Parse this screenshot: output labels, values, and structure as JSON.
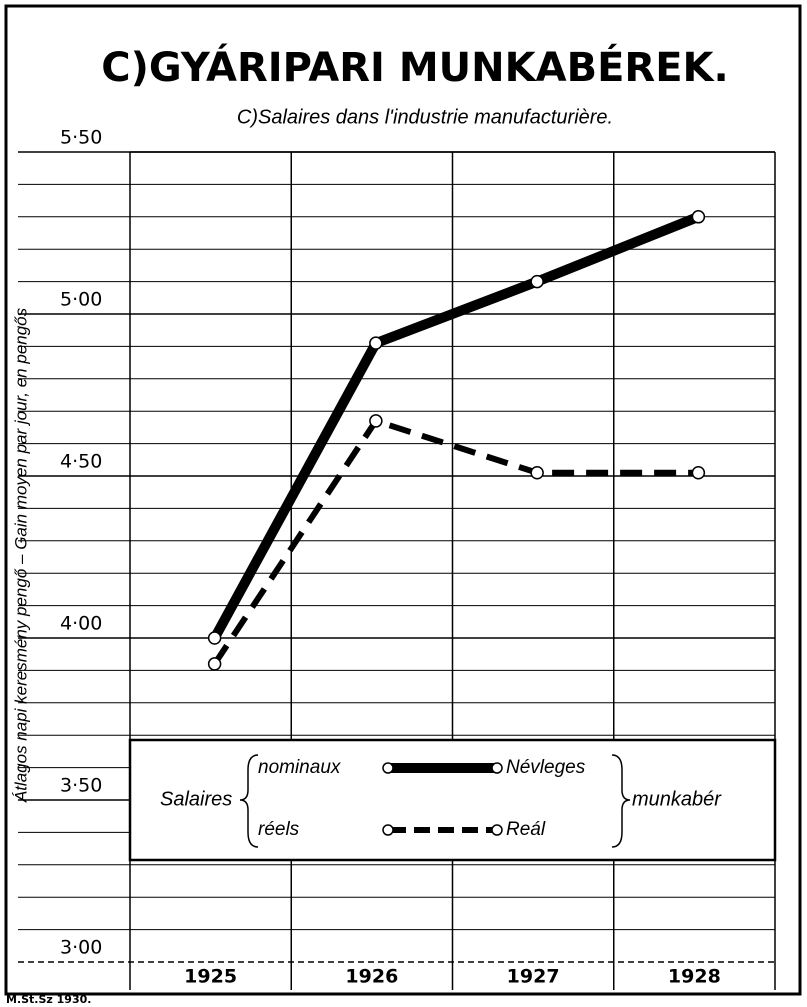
{
  "chart_data": {
    "type": "line",
    "title": "C)GYÁRIPARI MUNKABÉREK.",
    "subtitle": "C)Salaires dans l'industrie manufacturière.",
    "y_label": "Átlagos napi keresmény pengő – Gain moyen par jour, en pengős",
    "footer": "M.St.Sz 1930.",
    "categories": [
      "1925",
      "1926",
      "1927",
      "1928"
    ],
    "series": [
      {
        "name": "Névleges",
        "name_fr": "nominaux",
        "color": "#000000",
        "style": "solid",
        "values": [
          4.0,
          4.91,
          5.1,
          5.3
        ]
      },
      {
        "name": "Reál",
        "name_fr": "réels",
        "color": "#000000",
        "style": "dashed",
        "values": [
          3.92,
          4.67,
          4.51,
          4.51
        ]
      }
    ],
    "legend_left": "Salaires",
    "legend_right": "munkabér",
    "ylim": [
      3.0,
      5.5
    ],
    "yticks": [
      {
        "value": 3.0,
        "label": "3·00"
      },
      {
        "value": 3.5,
        "label": "3·50"
      },
      {
        "value": 4.0,
        "label": "4·00"
      },
      {
        "value": 4.5,
        "label": "4·50"
      },
      {
        "value": 5.0,
        "label": "5·00"
      },
      {
        "value": 5.5,
        "label": "5·50"
      }
    ],
    "minor_yticks": [
      3.1,
      3.2,
      3.3,
      3.4,
      3.6,
      3.7,
      3.8,
      3.9,
      4.1,
      4.2,
      4.3,
      4.4,
      4.6,
      4.7,
      4.8,
      4.9,
      5.1,
      5.2,
      5.3,
      5.4
    ],
    "grid": true
  }
}
